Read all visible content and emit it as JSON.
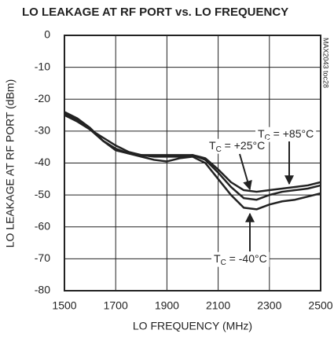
{
  "chart_data": {
    "type": "line",
    "title": "LO LEAKAGE AT RF PORT vs. LO FREQUENCY",
    "side_note": "MAX2043 toc28",
    "x_label": "LO FREQUENCY (MHz)",
    "y_label": "LO LEAKAGE AT RF PORT (dBm)",
    "x": [
      1500,
      1550,
      1600,
      1650,
      1700,
      1750,
      1800,
      1850,
      1900,
      1950,
      2000,
      2050,
      2100,
      2150,
      2200,
      2250,
      2300,
      2350,
      2400,
      2450,
      2500
    ],
    "series": [
      {
        "color": "#222222",
        "values": [
          -24,
          -26,
          -29,
          -33,
          -36,
          -37,
          -38,
          -39,
          -39.5,
          -38.5,
          -38,
          -40,
          -45,
          -50,
          -54,
          -54.5,
          -53,
          -52,
          -51.5,
          -50.5,
          -49.5
        ]
      },
      {
        "color": "#222222",
        "values": [
          -24.5,
          -26.5,
          -29.5,
          -33,
          -35.5,
          -37,
          -37.5,
          -38,
          -38,
          -38,
          -37.5,
          -39,
          -43,
          -47.5,
          -51,
          -51.5,
          -50,
          -49,
          -48.5,
          -48,
          -47
        ]
      },
      {
        "color": "#222222",
        "values": [
          -25,
          -27,
          -29.5,
          -32,
          -34.5,
          -36.5,
          -37.5,
          -37.5,
          -37.5,
          -37.5,
          -37.5,
          -38.5,
          -42,
          -46,
          -48.5,
          -49,
          -48.5,
          -48,
          -47.5,
          -47,
          -46
        ]
      }
    ],
    "annotations": [
      {
        "t": "T",
        "sub": "C",
        "rest": " = +85°C"
      },
      {
        "t": "T",
        "sub": "C",
        "rest": " = +25°C"
      },
      {
        "t": "T",
        "sub": "C",
        "rest": " = -40°C"
      }
    ],
    "xlim": [
      1500,
      2500
    ],
    "xticks": [
      1500,
      1700,
      1900,
      2100,
      2300,
      2500
    ],
    "ylim": [
      -80,
      0
    ],
    "yticks": [
      -80,
      -70,
      -60,
      -50,
      -40,
      -30,
      -20,
      -10,
      0
    ],
    "grid": true
  }
}
